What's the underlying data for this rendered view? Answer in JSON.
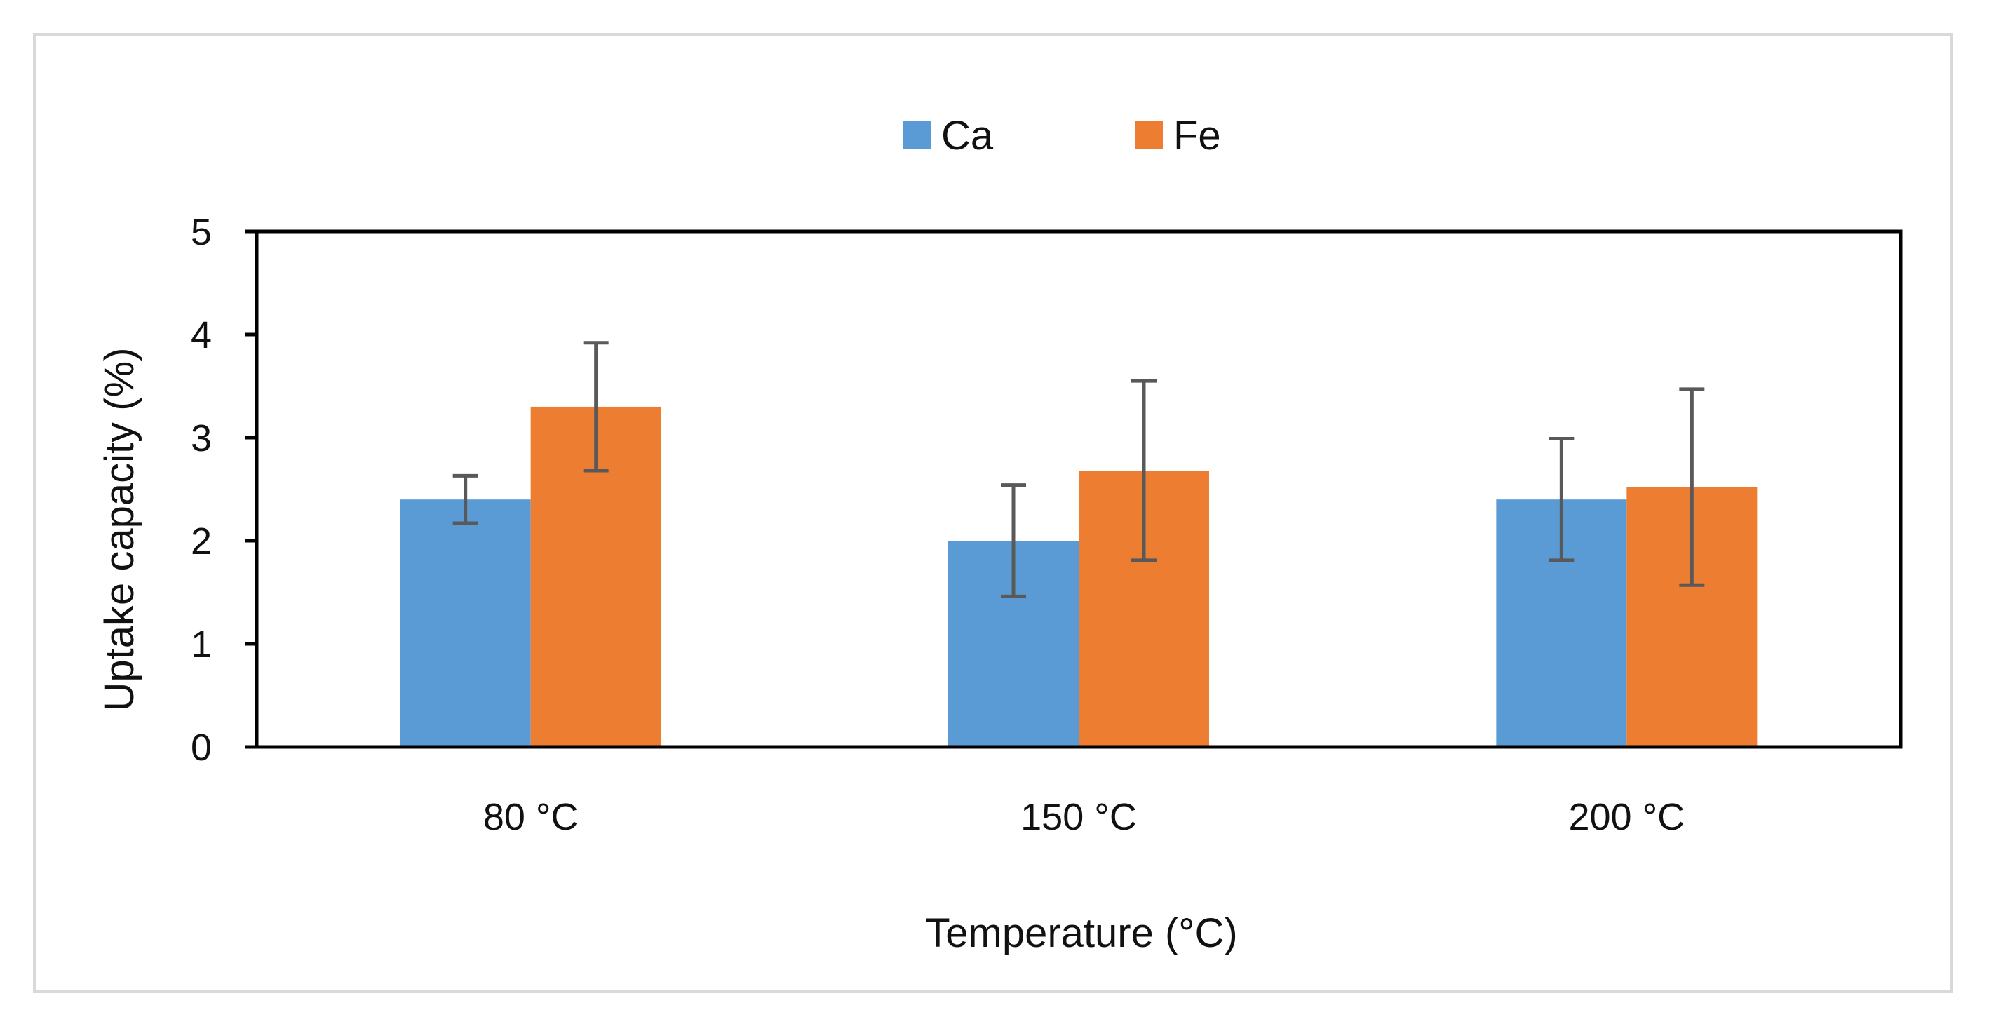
{
  "chart_data": {
    "type": "bar",
    "title": "",
    "categories": [
      "80 °C",
      "150 °C",
      "200 °C"
    ],
    "series": [
      {
        "name": "Ca",
        "color": "#5b9bd5",
        "values": [
          2.4,
          2.0,
          2.4
        ],
        "error": [
          0.23,
          0.54,
          0.59
        ]
      },
      {
        "name": "Fe",
        "color": "#ed7d31",
        "values": [
          3.3,
          2.68,
          2.52
        ],
        "error": [
          0.62,
          0.87,
          0.95
        ]
      }
    ],
    "xlabel": "Temperature (°C)",
    "ylabel": "Uptake capacity (%)",
    "ylim": [
      0,
      5
    ],
    "yticks": [
      0,
      1,
      2,
      3,
      4,
      5
    ],
    "grid": false,
    "legend_position": "top-center",
    "error_bar_color": "#595959",
    "axis_color": "#000000"
  }
}
